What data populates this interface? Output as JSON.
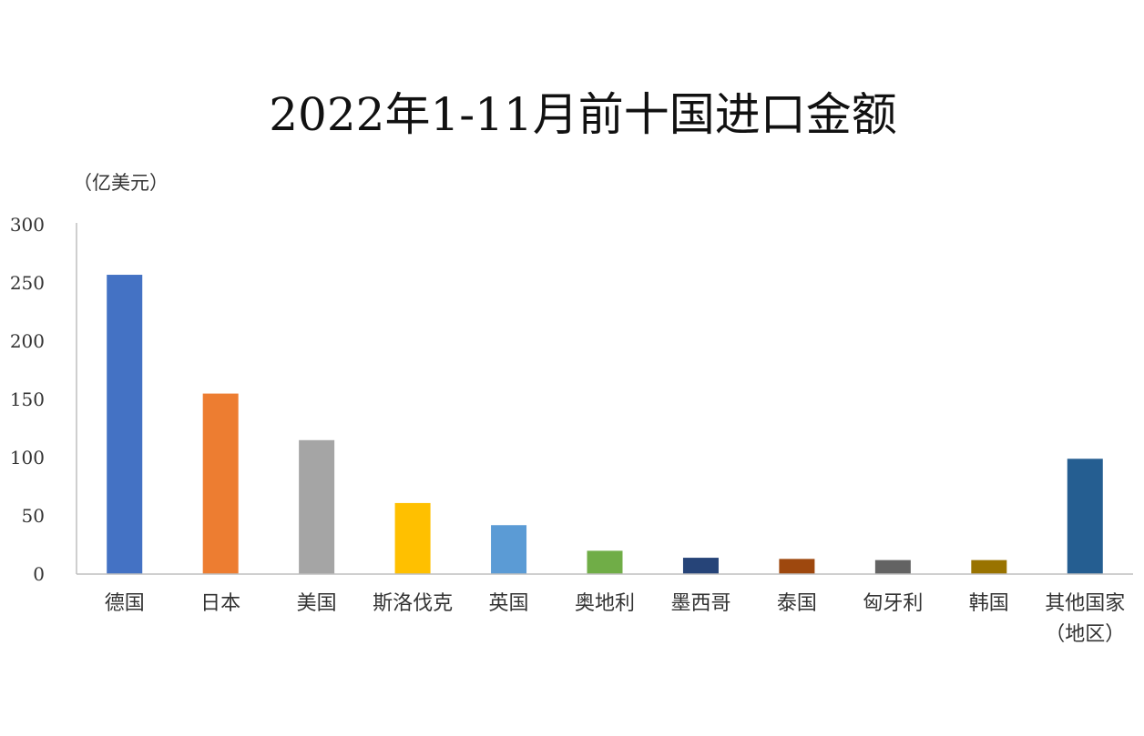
{
  "chart_data": {
    "type": "bar",
    "title": "2022年1-11月前十国进口金额",
    "unit_label": "（亿美元）",
    "xlabel": "",
    "ylabel": "",
    "ylim": [
      0,
      300
    ],
    "yticks": [
      0,
      50,
      100,
      150,
      200,
      250,
      300
    ],
    "grid": false,
    "legend": "none",
    "categories": [
      [
        "德国"
      ],
      [
        "日本"
      ],
      [
        "美国"
      ],
      [
        "斯洛伐克"
      ],
      [
        "英国"
      ],
      [
        "奥地利"
      ],
      [
        "墨西哥"
      ],
      [
        "泰国"
      ],
      [
        "匈牙利"
      ],
      [
        "韩国"
      ],
      [
        "其他国家",
        "（地区）"
      ]
    ],
    "values": [
      257,
      155,
      115,
      61,
      42,
      20,
      14,
      13,
      12,
      12,
      99
    ],
    "colors": [
      "#4472C4",
      "#ED7D31",
      "#A5A5A5",
      "#FFC000",
      "#5B9BD5",
      "#70AD47",
      "#264478",
      "#9E480E",
      "#636363",
      "#997300",
      "#255E91"
    ]
  }
}
